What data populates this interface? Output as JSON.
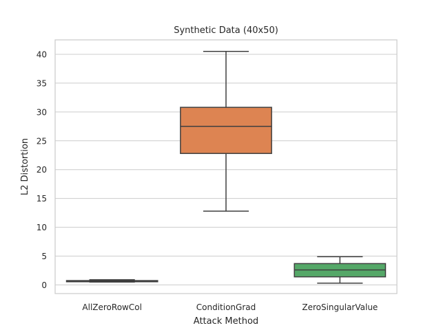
{
  "chart_data": {
    "type": "box",
    "title": "Synthetic Data (40x50)",
    "xlabel": "Attack Method",
    "ylabel": "L2 Distortion",
    "ylim": [
      -1.5,
      42.5
    ],
    "yticks": [
      0,
      5,
      10,
      15,
      20,
      25,
      30,
      35,
      40
    ],
    "grid": true,
    "categories": [
      "AllZeroRowCol",
      "ConditionGrad",
      "ZeroSingularValue"
    ],
    "boxes": [
      {
        "category": "AllZeroRowCol",
        "whisker_low": 0.5,
        "q1": 0.55,
        "median": 0.65,
        "q3": 0.75,
        "whisker_high": 0.9,
        "color": "#4c72b0"
      },
      {
        "category": "ConditionGrad",
        "whisker_low": 12.8,
        "q1": 22.8,
        "median": 27.5,
        "q3": 30.8,
        "whisker_high": 40.5,
        "color": "#dd8452"
      },
      {
        "category": "ZeroSingularValue",
        "whisker_low": 0.3,
        "q1": 1.4,
        "median": 2.6,
        "q3": 3.7,
        "whisker_high": 4.9,
        "color": "#55a868"
      }
    ]
  }
}
